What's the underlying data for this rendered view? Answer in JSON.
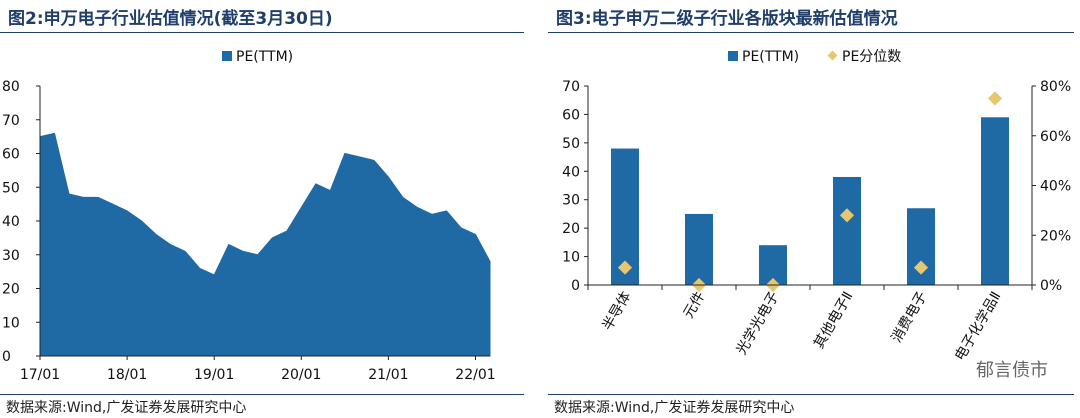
{
  "left": {
    "title": "图2:申万电子行业估值情况(截至3月30日)",
    "source": "数据来源:Wind,广发证券发展研究中心",
    "chart_data": {
      "type": "area",
      "legend": [
        "PE(TTM)"
      ],
      "legend_position": "top-center",
      "series": [
        {
          "name": "PE(TTM)",
          "x": [
            "2017-01",
            "2017-03",
            "2017-05",
            "2017-07",
            "2017-09",
            "2017-11",
            "2018-01",
            "2018-03",
            "2018-05",
            "2018-07",
            "2018-09",
            "2018-11",
            "2019-01",
            "2019-03",
            "2019-05",
            "2019-07",
            "2019-09",
            "2019-11",
            "2020-01",
            "2020-03",
            "2020-05",
            "2020-07",
            "2020-09",
            "2020-11",
            "2021-01",
            "2021-03",
            "2021-05",
            "2021-07",
            "2021-09",
            "2021-11",
            "2022-01",
            "2022-03"
          ],
          "values": [
            65,
            66,
            48,
            47,
            47,
            45,
            43,
            40,
            36,
            33,
            31,
            26,
            24,
            33,
            31,
            30,
            35,
            37,
            44,
            51,
            49,
            60,
            59,
            58,
            53,
            47,
            44,
            42,
            43,
            38,
            36,
            28
          ]
        }
      ],
      "x_ticks": [
        "17/01",
        "18/01",
        "19/01",
        "20/01",
        "21/01",
        "22/01"
      ],
      "y_ticks": [
        "0",
        "10",
        "20",
        "30",
        "40",
        "50",
        "60",
        "70",
        "80"
      ],
      "ylim": [
        0,
        80
      ]
    }
  },
  "right": {
    "title": "图3:电子申万二级子行业各版块最新估值情况",
    "source": "数据来源:Wind,广发证券发展研究中心",
    "chart_data": {
      "type": "bar",
      "categories": [
        "半导体",
        "元件",
        "光学光电子",
        "其他电子Ⅱ",
        "消费电子",
        "电子化学品Ⅱ"
      ],
      "series": [
        {
          "name": "PE(TTM)",
          "type": "bar",
          "axis": "left",
          "values": [
            48,
            25,
            14,
            38,
            27,
            59
          ]
        },
        {
          "name": "PE分位数",
          "type": "scatter",
          "axis": "right",
          "values": [
            0.07,
            0.0,
            0.0,
            0.28,
            0.07,
            0.75
          ]
        }
      ],
      "y_ticks": [
        "0",
        "10",
        "20",
        "30",
        "40",
        "50",
        "60",
        "70"
      ],
      "ylim": [
        0,
        70
      ],
      "y2_ticks": [
        "0%",
        "20%",
        "40%",
        "60%",
        "80%"
      ],
      "y2lim": [
        0,
        0.8
      ],
      "legend_position": "top-center",
      "colors": {
        "bar": "#1f6aa5",
        "marker": "#e6c66e"
      }
    }
  },
  "watermark": "郁言债市"
}
